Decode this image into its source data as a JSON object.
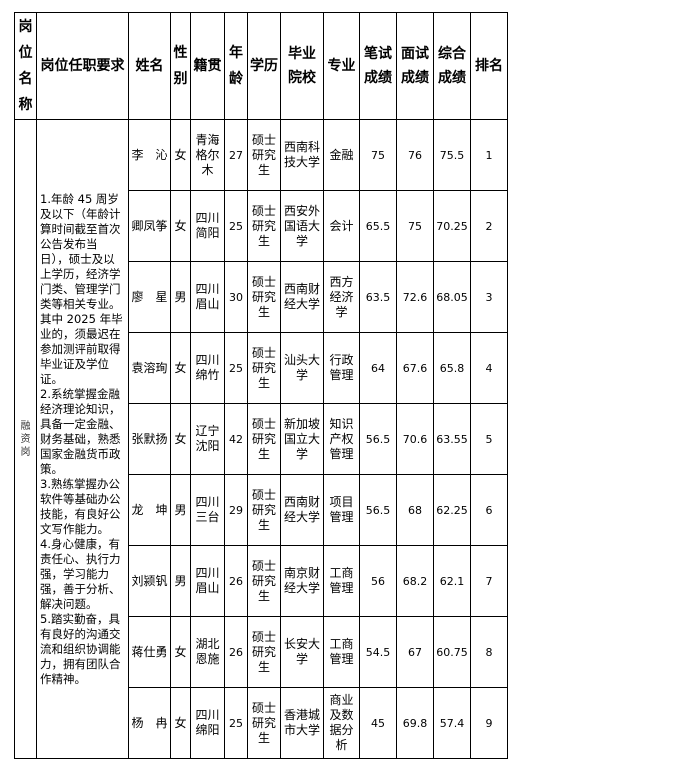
{
  "headers": {
    "post_name": "岗位名称",
    "requirements": "岗位任职要求",
    "name": "姓名",
    "gender": "性别",
    "origin": "籍贯",
    "age": "年龄",
    "education": "学历",
    "school": "毕业院校",
    "major": "专业",
    "written": "笔试成绩",
    "interview": "面试成绩",
    "total": "综合成绩",
    "rank": "排名"
  },
  "post": {
    "name": "融资岗",
    "requirements": "1.年龄 45 周岁及以下（年龄计算时间截至首次公告发布当日），硕士及以上学历，经济学门类、管理学门类等相关专业。其中 2025 年毕业的，须最迟在参加测评前取得毕业证及学位证。\n2.系统掌握金融经济理论知识，具备一定金融、财务基础，熟悉国家金融货币政策。\n3.熟练掌握办公软件等基础办公技能，有良好公文写作能力。\n4.身心健康，有责任心、执行力强，学习能力强，善于分析、解决问题。\n5.踏实勤奋，具有良好的沟通交流和组织协调能力，拥有团队合作精神。"
  },
  "rows": [
    {
      "name": "李　沁",
      "gender": "女",
      "origin": "青海格尔木",
      "age": "27",
      "education": "硕士研究生",
      "school": "西南科技大学",
      "major": "金融",
      "written": "75",
      "interview": "76",
      "total": "75.5",
      "rank": "1"
    },
    {
      "name": "卿凤筝",
      "gender": "女",
      "origin": "四川简阳",
      "age": "25",
      "education": "硕士研究生",
      "school": "西安外国语大学",
      "major": "会计",
      "written": "65.5",
      "interview": "75",
      "total": "70.25",
      "rank": "2"
    },
    {
      "name": "廖　星",
      "gender": "男",
      "origin": "四川眉山",
      "age": "30",
      "education": "硕士研究生",
      "school": "西南财经大学",
      "major": "西方经济学",
      "written": "63.5",
      "interview": "72.6",
      "total": "68.05",
      "rank": "3"
    },
    {
      "name": "袁溶珣",
      "gender": "女",
      "origin": "四川绵竹",
      "age": "25",
      "education": "硕士研究生",
      "school": "汕头大学",
      "major": "行政管理",
      "written": "64",
      "interview": "67.6",
      "total": "65.8",
      "rank": "4"
    },
    {
      "name": "张默扬",
      "gender": "女",
      "origin": "辽宁沈阳",
      "age": "42",
      "education": "硕士研究生",
      "school": "新加坡国立大学",
      "major": "知识产权管理",
      "written": "56.5",
      "interview": "70.6",
      "total": "63.55",
      "rank": "5"
    },
    {
      "name": "龙　坤",
      "gender": "男",
      "origin": "四川三台",
      "age": "29",
      "education": "硕士研究生",
      "school": "西南财经大学",
      "major": "项目管理",
      "written": "56.5",
      "interview": "68",
      "total": "62.25",
      "rank": "6"
    },
    {
      "name": "刘颍钒",
      "gender": "男",
      "origin": "四川眉山",
      "age": "26",
      "education": "硕士研究生",
      "school": "南京财经大学",
      "major": "工商管理",
      "written": "56",
      "interview": "68.2",
      "total": "62.1",
      "rank": "7"
    },
    {
      "name": "蒋仕勇",
      "gender": "女",
      "origin": "湖北恩施",
      "age": "26",
      "education": "硕士研究生",
      "school": "长安大学",
      "major": "工商管理",
      "written": "54.5",
      "interview": "67",
      "total": "60.75",
      "rank": "8"
    },
    {
      "name": "杨　冉",
      "gender": "女",
      "origin": "四川绵阳",
      "age": "25",
      "education": "硕士研究生",
      "school": "香港城市大学",
      "major": "商业及数据分析",
      "written": "45",
      "interview": "69.8",
      "total": "57.4",
      "rank": "9"
    }
  ]
}
